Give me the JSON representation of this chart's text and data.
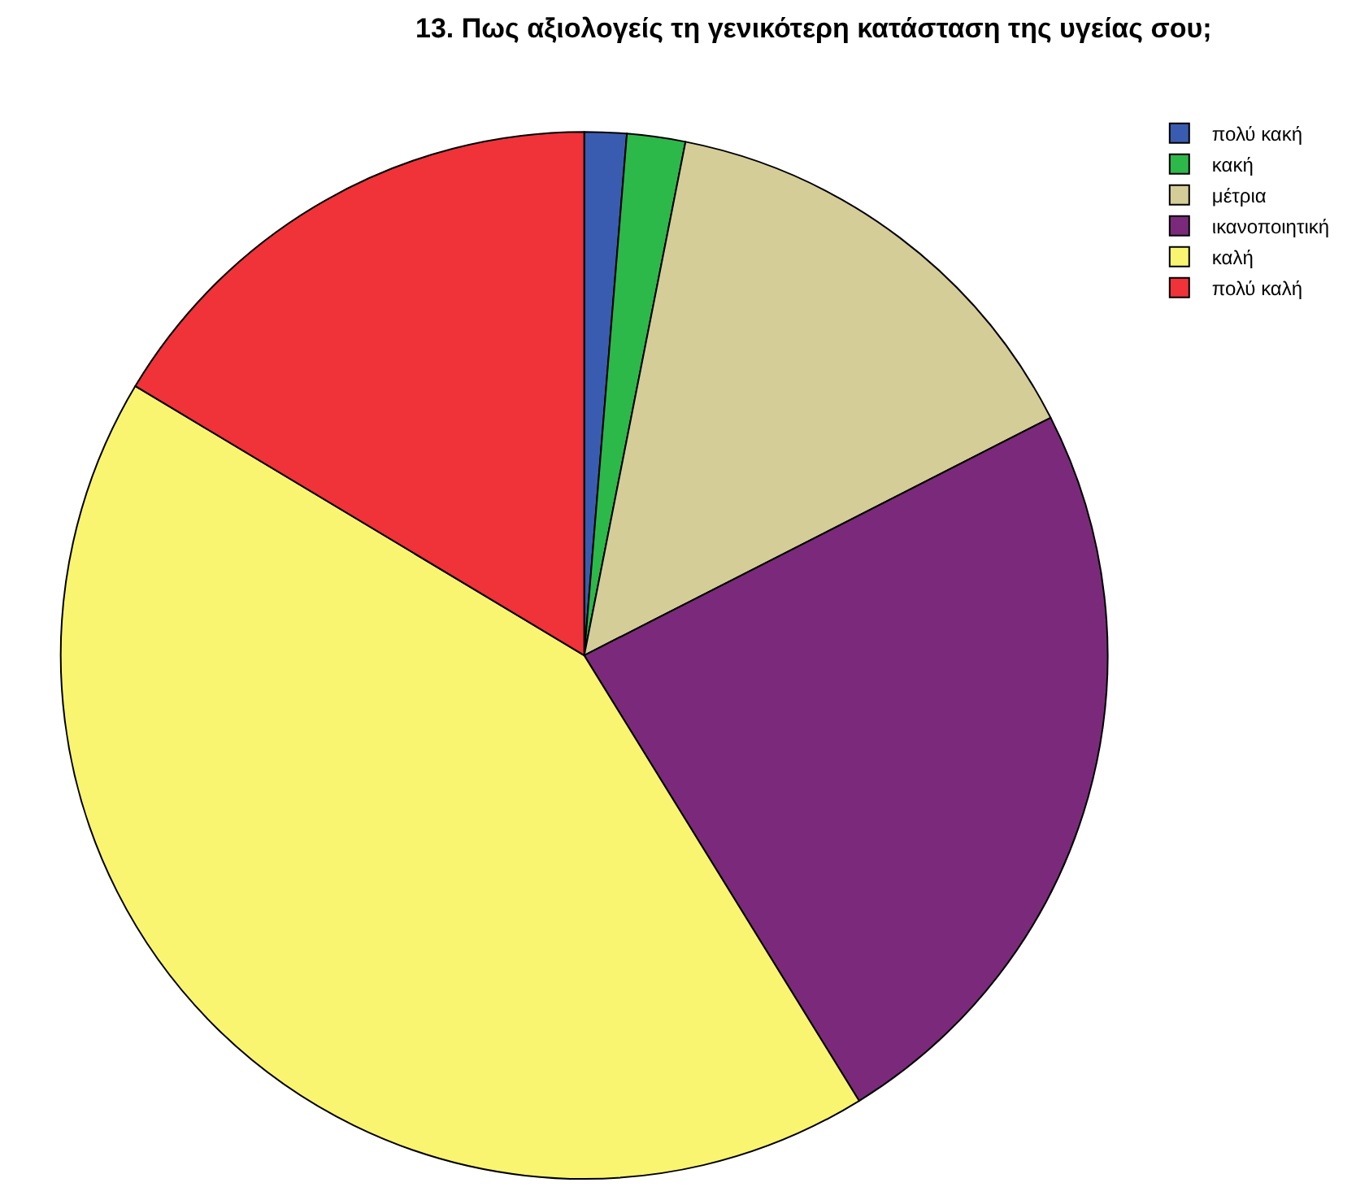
{
  "chart_data": {
    "type": "pie",
    "title": "13. Πως αξιολογείς τη γενικότερη κατάσταση της υγείας σου;",
    "categories": [
      "πολύ κακή",
      "κακή",
      "μέτρια",
      "ικανοποιητική",
      "καλή",
      "πολύ καλή"
    ],
    "values": [
      1.3,
      1.8,
      14.4,
      23.7,
      42.4,
      16.4
    ],
    "colors": [
      "#3a5cb0",
      "#2db84a",
      "#d4cd98",
      "#7b2a7b",
      "#faf570",
      "#ef3339"
    ],
    "legend": "top right"
  }
}
